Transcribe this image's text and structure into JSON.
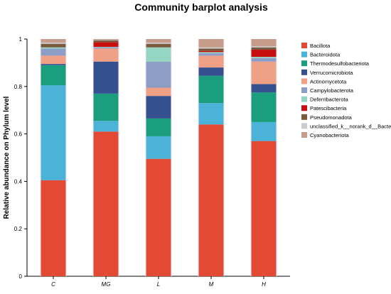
{
  "chart_data": {
    "type": "bar",
    "stacked": true,
    "title": "Community barplot analysis",
    "xlabel": "",
    "ylabel": "Relative abundance on Phylum level",
    "ylim": [
      0,
      1
    ],
    "yticks": [
      "0",
      "0.2",
      "0.4",
      "0.6",
      "0.8",
      "1"
    ],
    "categories": [
      "C",
      "MG",
      "L",
      "M",
      "H"
    ],
    "legend_position": "right",
    "series": [
      {
        "name": "Bacillota",
        "color": "#e34a33",
        "values": [
          0.405,
          0.61,
          0.495,
          0.64,
          0.57
        ]
      },
      {
        "name": "Bacteroidota",
        "color": "#4bb3d8",
        "values": [
          0.4,
          0.045,
          0.095,
          0.09,
          0.08
        ]
      },
      {
        "name": "Thermodesulfobacteriota",
        "color": "#1a9e7e",
        "values": [
          0.085,
          0.115,
          0.075,
          0.115,
          0.125
        ]
      },
      {
        "name": "Verrucomicrobiota",
        "color": "#35508f",
        "values": [
          0.005,
          0.135,
          0.095,
          0.035,
          0.035
        ]
      },
      {
        "name": "Actinomycetota",
        "color": "#f0a085",
        "values": [
          0.035,
          0.055,
          0.035,
          0.05,
          0.095
        ]
      },
      {
        "name": "Campylobacterota",
        "color": "#8c9dc6",
        "values": [
          0.03,
          0.005,
          0.11,
          0.01,
          0.015
        ]
      },
      {
        "name": "Deferribacterota",
        "color": "#94d6c2",
        "values": [
          0.005,
          0.002,
          0.06,
          0.005,
          0.005
        ]
      },
      {
        "name": "Patescibacteria",
        "color": "#c80f10",
        "values": [
          0.0,
          0.02,
          0.0,
          0.005,
          0.03
        ]
      },
      {
        "name": "Pseudomonadota",
        "color": "#7a5a3c",
        "values": [
          0.015,
          0.008,
          0.015,
          0.01,
          0.01
        ]
      },
      {
        "name": "unclassified_k__norank_d__Bacteria",
        "color": "#cccccc",
        "values": [
          0.005,
          0.002,
          0.005,
          0.005,
          0.005
        ]
      },
      {
        "name": "Cyanobacteriota",
        "color": "#c69c8a",
        "values": [
          0.015,
          0.003,
          0.015,
          0.035,
          0.03
        ]
      }
    ]
  }
}
